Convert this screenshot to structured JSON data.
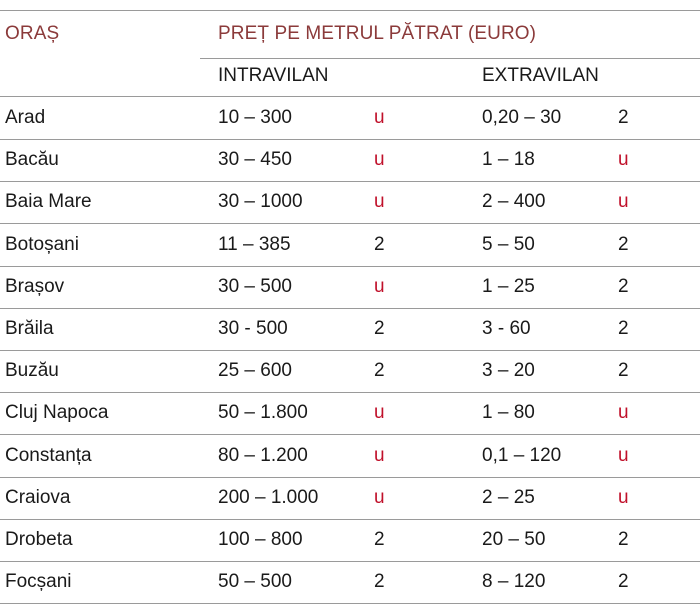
{
  "header": {
    "city_label": "ORAȘ",
    "price_label": "PREȚ PE METRUL PĂTRAT (EURO)",
    "intravilan_label": "INTRAVILAN",
    "extravilan_label": "EXTRAVILAN"
  },
  "rows": [
    {
      "city": "Arad",
      "intravilan": "10 – 300",
      "intra_mark": "u",
      "extravilan": "0,20 – 30",
      "extra_mark": "2"
    },
    {
      "city": "Bacău",
      "intravilan": "30 – 450",
      "intra_mark": "u",
      "extravilan": "1 – 18",
      "extra_mark": "u"
    },
    {
      "city": "Baia Mare",
      "intravilan": "30 – 1000",
      "intra_mark": "u",
      "extravilan": "2 – 400",
      "extra_mark": "u"
    },
    {
      "city": "Botoșani",
      "intravilan": "11 – 385",
      "intra_mark": "2",
      "extravilan": "5 – 50",
      "extra_mark": "2"
    },
    {
      "city": "Brașov",
      "intravilan": "30 – 500",
      "intra_mark": "u",
      "extravilan": "1 – 25",
      "extra_mark": "2"
    },
    {
      "city": "Brăila",
      "intravilan": "30 - 500",
      "intra_mark": "2",
      "extravilan": "3 - 60",
      "extra_mark": "2"
    },
    {
      "city": "Buzău",
      "intravilan": "25 – 600",
      "intra_mark": "2",
      "extravilan": "3 – 20",
      "extra_mark": "2"
    },
    {
      "city": "Cluj Napoca",
      "intravilan": "50 – 1.800",
      "intra_mark": "u",
      "extravilan": "1 – 80",
      "extra_mark": "u"
    },
    {
      "city": "Constanța",
      "intravilan": "80 – 1.200",
      "intra_mark": "u",
      "extravilan": "0,1 – 120",
      "extra_mark": "u"
    },
    {
      "city": "Craiova",
      "intravilan": "200 – 1.000",
      "intra_mark": "u",
      "extravilan": "2 – 25",
      "extra_mark": "u"
    },
    {
      "city": "Drobeta",
      "intravilan": "100 – 800",
      "intra_mark": "2",
      "extravilan": "20 – 50",
      "extra_mark": "2"
    },
    {
      "city": "Focșani",
      "intravilan": "50 – 500",
      "intra_mark": "2",
      "extravilan": "8 – 120",
      "extra_mark": "2"
    }
  ]
}
